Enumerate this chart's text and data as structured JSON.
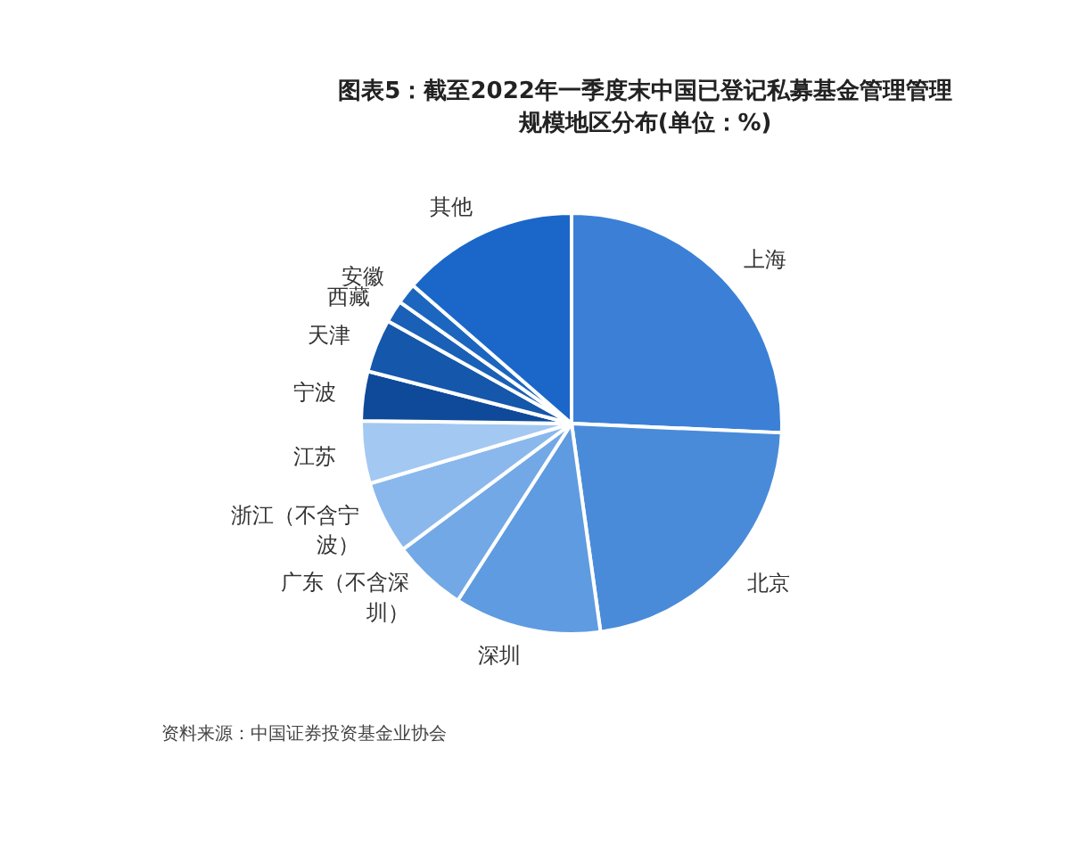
{
  "chart_data": {
    "type": "pie",
    "title": "图表5：截至2022年一季度末中国已登记私募基金管理管理规模地区分布(单位：%)",
    "categories": [
      "上海",
      "北京",
      "深圳",
      "广东（不含深圳）",
      "浙江（不含宁波）",
      "江苏",
      "宁波",
      "天津",
      "西藏",
      "安徽",
      "其他"
    ],
    "values": [
      25.7,
      22.1,
      11.3,
      5.7,
      5.6,
      4.8,
      3.8,
      4.1,
      1.7,
      1.6,
      13.6
    ],
    "colors": [
      "#3b80d6",
      "#4a8bd9",
      "#5f9be0",
      "#72a8e6",
      "#8ab8ed",
      "#a3c8f2",
      "#0f4a9a",
      "#1557ab",
      "#1a60b6",
      "#1c66bf",
      "#1b67c9"
    ],
    "annotations": [
      "资料来源：中国证券投资基金业协会"
    ]
  }
}
